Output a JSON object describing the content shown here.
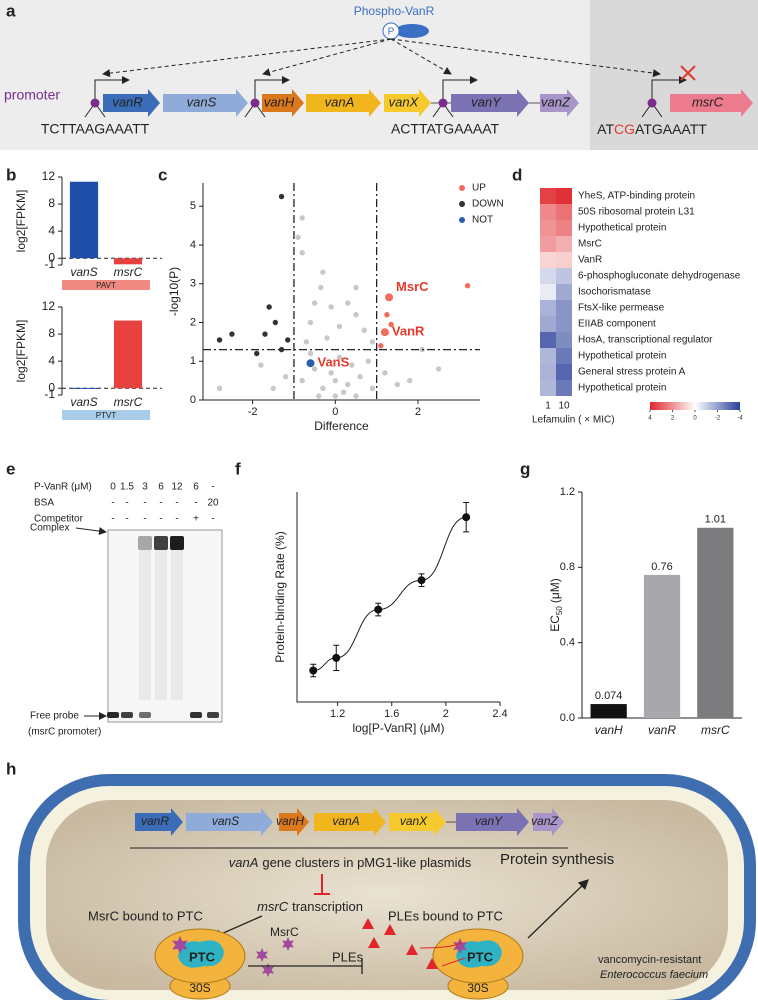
{
  "panel_labels": [
    "a",
    "b",
    "c",
    "d",
    "e",
    "f",
    "g",
    "h"
  ],
  "panel_a": {
    "phospho": "Phospho-VanR",
    "p_symbol": "P",
    "promoter": "promoter",
    "genes": [
      {
        "name": "vanR",
        "color": "#3b6cb8"
      },
      {
        "name": "vanS",
        "color": "#8eabda"
      },
      {
        "name": "vanH",
        "color": "#d9781c"
      },
      {
        "name": "vanA",
        "color": "#f1b61d"
      },
      {
        "name": "vanX",
        "color": "#f6ca2c"
      },
      {
        "name": "vanY",
        "color": "#7b72b4"
      },
      {
        "name": "vanZ",
        "color": "#a995c9"
      },
      {
        "name": "msrC",
        "color": "#ec7b8d"
      }
    ],
    "seq1": "TCTTAAGAAATT",
    "seq2": "ACTTATGAAAAT",
    "seq3": [
      "AT",
      "CG",
      "ATGAAATT"
    ]
  },
  "panel_b": {
    "charts": [
      {
        "type": "bar",
        "ylabel": "log2[FPKM]",
        "categories": [
          "vanS",
          "msrC"
        ],
        "values": [
          11.3,
          -0.9
        ],
        "colors": [
          "#1f4ea8",
          "#e8423f"
        ],
        "ylim": [
          -1,
          12
        ],
        "yticks": [
          -1,
          0,
          4,
          8,
          12
        ],
        "promoter_label": "PAVT",
        "promoter_color": "#f08a80"
      },
      {
        "type": "bar",
        "ylabel": "log2[FPKM]",
        "categories": [
          "vanS",
          "msrC"
        ],
        "values": [
          0.05,
          10
        ],
        "colors": [
          "#1f4ea8",
          "#e8423f"
        ],
        "ylim": [
          -1,
          12
        ],
        "yticks": [
          -1,
          0,
          4,
          8,
          12
        ],
        "promoter_label": "PTVT",
        "promoter_color": "#a9cce8"
      }
    ]
  },
  "panel_c": {
    "type": "scatter",
    "xlabel": "Difference",
    "ylabel": "-log10(P)",
    "xlim": [
      -3.2,
      3.5
    ],
    "ylim": [
      0,
      5.6
    ],
    "xticks": [
      -2,
      0,
      2
    ],
    "yticks": [
      0,
      1,
      2,
      3,
      4,
      5
    ],
    "vlines": [
      -1,
      1
    ],
    "hline": 1.3,
    "series": [
      {
        "color": "#c8c8c8",
        "x": [
          -0.8,
          -0.8,
          -0.3,
          -0.35,
          -0.5,
          -0.1,
          0.3,
          0.5,
          -0.6,
          0.1,
          0.7,
          -0.9,
          0.5,
          -0.2,
          0.9,
          -0.7,
          2.1,
          2.5,
          -2.8,
          1.8,
          -1.5,
          -0.5,
          0,
          0.4,
          -0.3,
          0.2,
          0.6,
          -0.8,
          0.9,
          1.2,
          -1.2,
          0.1,
          -0.1,
          0.3,
          -0.6,
          0.8,
          1.5,
          -1.8,
          0,
          0.5,
          -0.4
        ],
        "y": [
          4.7,
          3.8,
          3.3,
          2.9,
          2.5,
          2.4,
          2.5,
          2.2,
          2.0,
          1.9,
          1.8,
          4.2,
          2.9,
          1.6,
          1.5,
          1.5,
          1.3,
          0.8,
          0.3,
          0.5,
          0.3,
          0.8,
          0.5,
          0.9,
          0.3,
          0.2,
          0.6,
          0.5,
          0.3,
          0.7,
          0.6,
          1.1,
          0.7,
          0.4,
          1.2,
          1.0,
          0.4,
          0.9,
          0.1,
          0.1,
          0.1
        ]
      },
      {
        "name": "UP",
        "color": "#f26b5b",
        "x": [
          1.3,
          1.2,
          3.2,
          1.25,
          1.35,
          1.1
        ],
        "y": [
          2.65,
          1.75,
          2.95,
          2.2,
          1.95,
          1.4
        ],
        "labels": [
          "MsrC",
          "VanR",
          null,
          null,
          null,
          null
        ]
      },
      {
        "name": "DOWN",
        "color": "#333333",
        "x": [
          -1.3,
          -2.5,
          -1.6,
          -1.45,
          -1.7,
          -2.8,
          -1.3,
          -1.9,
          -1.15
        ],
        "y": [
          5.25,
          1.7,
          2.4,
          2.0,
          1.7,
          1.55,
          1.3,
          1.2,
          1.55
        ]
      },
      {
        "name": "NOT",
        "color": "#2b5fae",
        "x": [
          -0.6
        ],
        "y": [
          0.95
        ],
        "labels": [
          "VanS"
        ]
      }
    ]
  },
  "panel_d": {
    "type": "heatmap",
    "rows": [
      "YheS, ATP-binding protein",
      "50S ribosomal protein L31",
      "Hypothetical protein",
      "MsrC",
      "VanR",
      "6-phosphogluconate dehydrogenase",
      "Isochorismatase",
      "FtsX-like permease",
      "EIIAB component",
      "HosA, transcriptional regulator",
      "Hypothetical protein",
      "General stress protein A",
      "Hypothetical protein"
    ],
    "columns": [
      "1",
      "10"
    ],
    "values": [
      [
        3.5,
        3.8
      ],
      [
        2.2,
        2.6
      ],
      [
        2.0,
        2.3
      ],
      [
        1.8,
        1.5
      ],
      [
        0.8,
        0.9
      ],
      [
        -0.8,
        -1.2
      ],
      [
        -0.4,
        -1.8
      ],
      [
        -1.6,
        -2.2
      ],
      [
        -1.8,
        -2.2
      ],
      [
        -3.2,
        -2.4
      ],
      [
        -1.5,
        -2.8
      ],
      [
        -1.6,
        -3.2
      ],
      [
        -1.5,
        -2.8
      ]
    ],
    "xlabel": "Lefamulin ( × MIC)",
    "colorbar_lim": [
      4,
      -4
    ],
    "colorbar_ticks": [
      4,
      2,
      0,
      -2,
      -4
    ]
  },
  "panel_e": {
    "rows": [
      {
        "label": "P-VanR (μM)",
        "lanes": [
          "0",
          "1.5",
          "3",
          "6",
          "12",
          "6",
          "-"
        ]
      },
      {
        "label": "BSA",
        "lanes": [
          "-",
          "-",
          "-",
          "-",
          "-",
          "-",
          "20"
        ]
      },
      {
        "label": "Competitor",
        "lanes": [
          "-",
          "-",
          "-",
          "-",
          "-",
          "+",
          "-"
        ]
      }
    ],
    "complex": "Complex",
    "free_probe": "Free probe",
    "probe_name": "(msrC promoter)"
  },
  "panel_f": {
    "type": "scatter",
    "xlabel": "log[P-VanR] (μM)",
    "ylabel": "Protein-binding Rate (%)",
    "xlim": [
      0.9,
      2.4
    ],
    "ylim": [
      0,
      100
    ],
    "xticks": [
      1.2,
      1.6,
      2.0,
      2.4
    ],
    "x": [
      1.02,
      1.19,
      1.5,
      1.82,
      2.15
    ],
    "y": [
      15,
      21,
      44,
      58,
      88
    ],
    "errors": [
      3,
      6,
      3,
      3,
      7
    ],
    "color": "#111111"
  },
  "panel_g": {
    "type": "bar",
    "ylabel": {
      "main": "EC",
      "sub": "50",
      "unit": "(μM)"
    },
    "categories": [
      "vanH",
      "vanR",
      "msrC"
    ],
    "values": [
      0.074,
      0.76,
      1.01
    ],
    "colors": [
      "#111111",
      "#a8a8ac",
      "#7c7c7e"
    ],
    "ylim": [
      0,
      1.2
    ],
    "yticks": [
      {
        "value": 0,
        "label": "0.0"
      },
      0.4,
      0.8,
      1.2
    ]
  },
  "panel_h": {
    "genes": [
      "vanR",
      "vanS",
      "vanH",
      "vanA",
      "vanX",
      "vanY",
      "vanZ"
    ],
    "cluster": {
      "italic": "vanA",
      "text": "gene clusters in pMG1-like plasmids"
    },
    "transcription": {
      "italic": "msrC",
      "text": "transcription"
    },
    "msrc_bound": "MsrC bound to PTC",
    "msrc": "MsrC",
    "ples_bound": "PLEs bound to PTC",
    "ples": "PLEs",
    "synthesis": "Protein synthesis",
    "ptc": "PTC",
    "subunit": "30S",
    "organism1": "vancomycin-resistant",
    "organism2": "Enterococcus faecium"
  }
}
